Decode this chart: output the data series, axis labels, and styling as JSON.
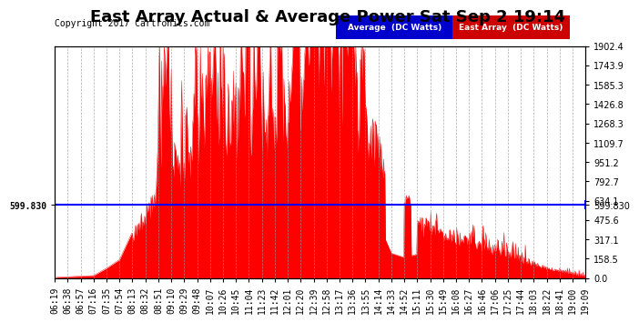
{
  "title": "East Array Actual & Average Power Sat Sep 2 19:14",
  "copyright": "Copyright 2017 Cartronics.com",
  "average_value": 599.83,
  "y_max": 1902.4,
  "y_min": 0.0,
  "yticks_right": [
    0.0,
    158.5,
    317.1,
    475.6,
    634.1,
    792.7,
    951.2,
    1109.7,
    1268.3,
    1426.8,
    1585.3,
    1743.9,
    1902.4
  ],
  "ytick_left_label": "599.830",
  "background_color": "#ffffff",
  "plot_bg_color": "#ffffff",
  "grid_color": "#999999",
  "fill_color": "#ff0000",
  "line_color": "#ff0000",
  "avg_line_color": "#0000ff",
  "legend_avg_bg": "#0000cc",
  "legend_east_bg": "#cc0000",
  "legend_avg_text": "Average  (DC Watts)",
  "legend_east_text": "East Array  (DC Watts)",
  "xtick_labels": [
    "06:19",
    "06:38",
    "06:57",
    "07:16",
    "07:35",
    "07:54",
    "08:13",
    "08:32",
    "08:51",
    "09:10",
    "09:29",
    "09:48",
    "10:07",
    "10:26",
    "10:45",
    "11:04",
    "11:23",
    "11:42",
    "12:01",
    "12:20",
    "12:39",
    "12:58",
    "13:17",
    "13:36",
    "13:55",
    "14:14",
    "14:33",
    "14:52",
    "15:11",
    "15:30",
    "15:49",
    "16:08",
    "16:27",
    "16:46",
    "17:06",
    "17:25",
    "17:44",
    "18:03",
    "18:22",
    "18:41",
    "19:00",
    "19:09"
  ],
  "title_fontsize": 13,
  "copyright_fontsize": 7,
  "tick_fontsize": 7
}
